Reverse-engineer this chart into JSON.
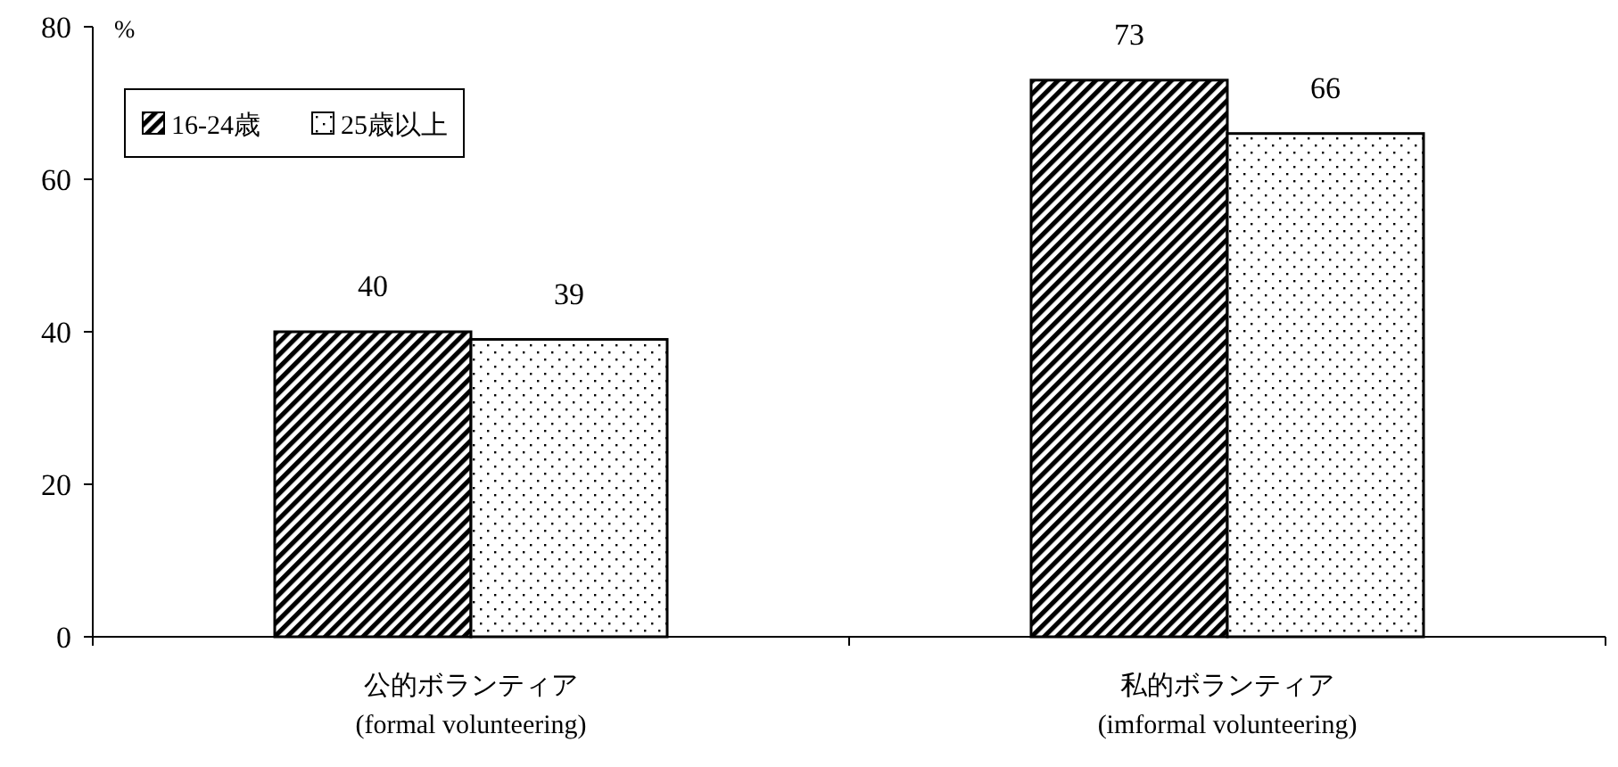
{
  "chart_data": {
    "type": "bar",
    "ylabel": "%",
    "categories": [
      "公的ボランティア\n(formal volunteering)",
      "私的ボランティア\n(imformal volunteering)"
    ],
    "series": [
      {
        "name": "16-24歳",
        "color": "#000000",
        "values": [
          40,
          73
        ]
      },
      {
        "name": "25歳以上",
        "color": "#000000",
        "values": [
          39,
          66
        ]
      }
    ],
    "ylim": [
      0,
      80
    ],
    "yticks": [
      0,
      20,
      40,
      60,
      80
    ],
    "data_labels": true,
    "legend": "top left",
    "grid": false
  }
}
